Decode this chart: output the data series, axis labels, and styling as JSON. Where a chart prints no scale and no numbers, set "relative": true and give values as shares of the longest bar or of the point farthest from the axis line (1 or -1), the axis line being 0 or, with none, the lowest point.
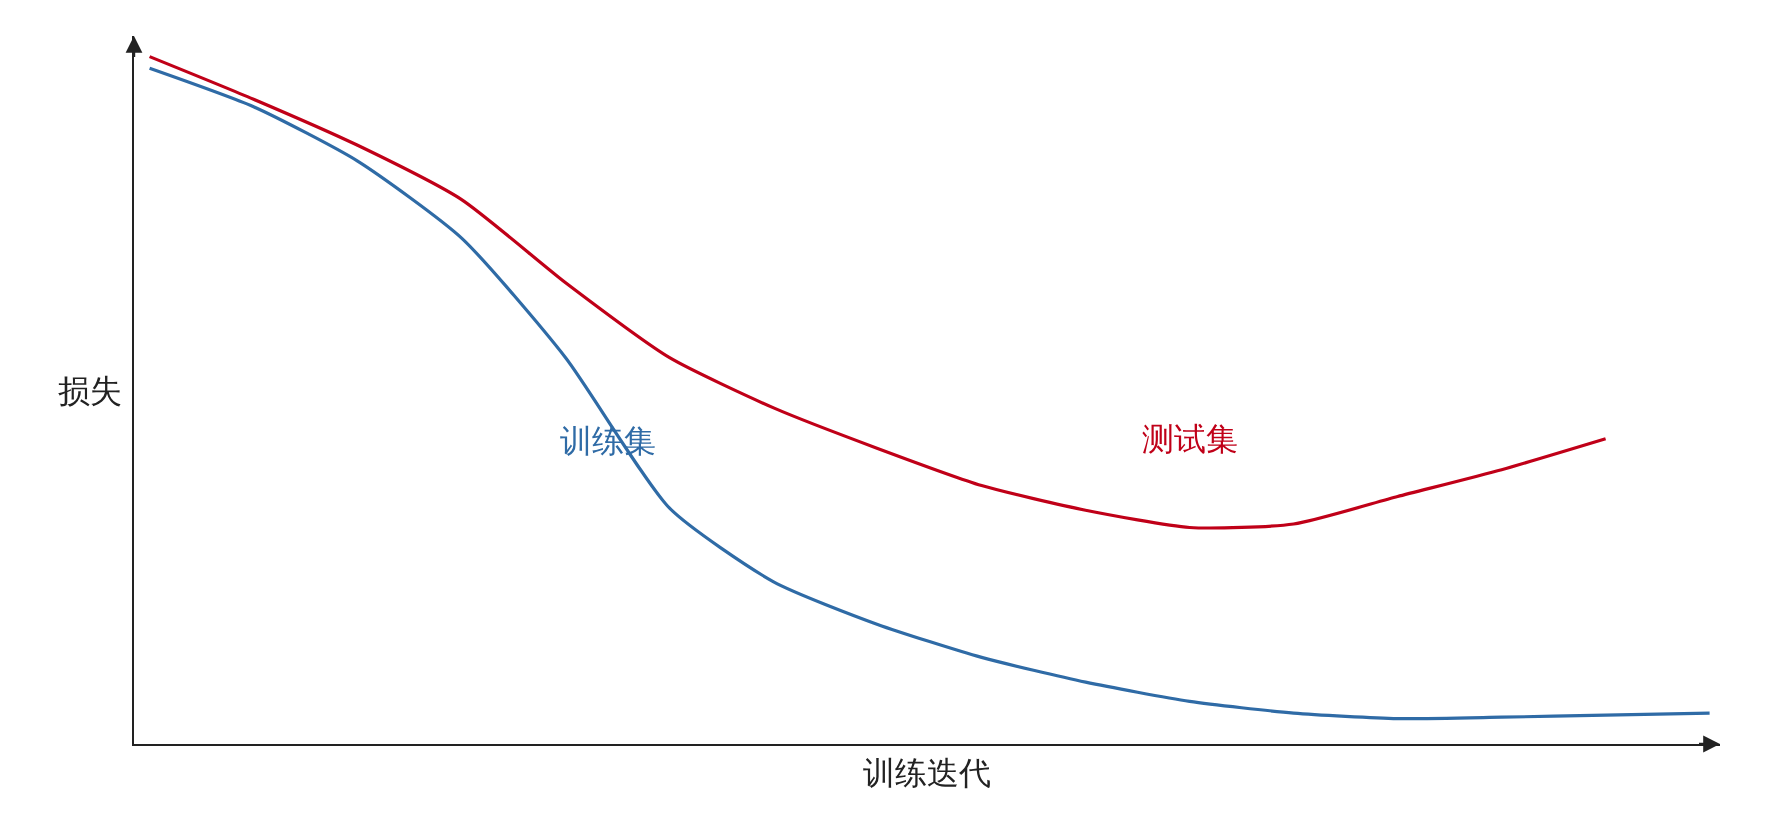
{
  "chart_data": {
    "type": "line",
    "relative": true,
    "xlabel": "训练迭代",
    "ylabel": "损失",
    "categories": [
      null,
      null,
      null,
      null,
      null,
      null,
      null,
      null,
      null,
      null,
      null,
      null,
      null,
      null,
      null,
      null
    ],
    "legend": false,
    "marker": "none",
    "line_style": "solid",
    "series": [
      {
        "name": "测试集",
        "color": "#c00018",
        "values": [
          1.0,
          0.938,
          0.871,
          0.792,
          0.671,
          0.562,
          0.489,
          0.43,
          0.376,
          0.34,
          0.315,
          0.32,
          0.36,
          0.399,
          0.444,
          null
        ]
      },
      {
        "name": "训练集",
        "color": "#2f6ba6",
        "values": [
          0.983,
          0.927,
          0.848,
          0.736,
          0.562,
          0.343,
          0.236,
          0.174,
          0.126,
          0.09,
          0.062,
          0.045,
          0.037,
          0.039,
          0.042,
          0.045
        ]
      }
    ]
  }
}
